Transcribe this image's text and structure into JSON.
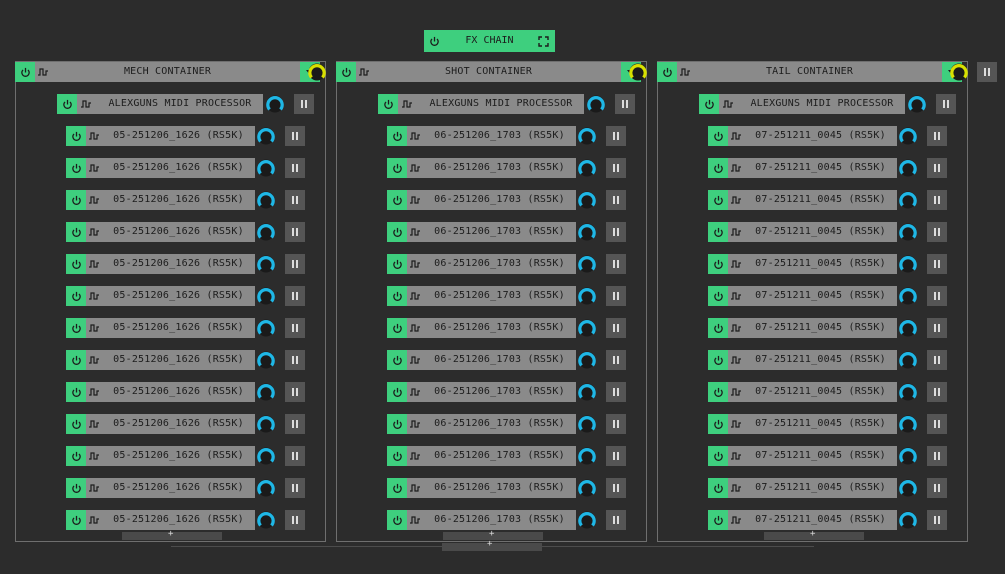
{
  "fx_chain": {
    "label": "FX CHAIN"
  },
  "colors": {
    "power": "#3ecf7e",
    "bar": "#8a8a8a",
    "knob_active": "#1fb7e6",
    "container_knob": "#d8e000",
    "background": "#2c2c2c"
  },
  "containers": [
    {
      "title": "MECH CONTAINER",
      "processor": "ALEXGUNS MIDI PROCESSOR",
      "items": [
        "05-251206_1626 (RS5K)",
        "05-251206_1626 (RS5K)",
        "05-251206_1626 (RS5K)",
        "05-251206_1626 (RS5K)",
        "05-251206_1626 (RS5K)",
        "05-251206_1626 (RS5K)",
        "05-251206_1626 (RS5K)",
        "05-251206_1626 (RS5K)",
        "05-251206_1626 (RS5K)",
        "05-251206_1626 (RS5K)",
        "05-251206_1626 (RS5K)",
        "05-251206_1626 (RS5K)",
        "05-251206_1626 (RS5K)"
      ],
      "add": "+"
    },
    {
      "title": "SHOT CONTAINER",
      "processor": "ALEXGUNS MIDI PROCESSOR",
      "items": [
        "06-251206_1703 (RS5K)",
        "06-251206_1703 (RS5K)",
        "06-251206_1703 (RS5K)",
        "06-251206_1703 (RS5K)",
        "06-251206_1703 (RS5K)",
        "06-251206_1703 (RS5K)",
        "06-251206_1703 (RS5K)",
        "06-251206_1703 (RS5K)",
        "06-251206_1703 (RS5K)",
        "06-251206_1703 (RS5K)",
        "06-251206_1703 (RS5K)",
        "06-251206_1703 (RS5K)",
        "06-251206_1703 (RS5K)"
      ],
      "add": "+"
    },
    {
      "title": "TAIL CONTAINER",
      "processor": "ALEXGUNS MIDI PROCESSOR",
      "items": [
        "07-251211_0045 (RS5K)",
        "07-251211_0045 (RS5K)",
        "07-251211_0045 (RS5K)",
        "07-251211_0045 (RS5K)",
        "07-251211_0045 (RS5K)",
        "07-251211_0045 (RS5K)",
        "07-251211_0045 (RS5K)",
        "07-251211_0045 (RS5K)",
        "07-251211_0045 (RS5K)",
        "07-251211_0045 (RS5K)",
        "07-251211_0045 (RS5K)",
        "07-251211_0045 (RS5K)",
        "07-251211_0045 (RS5K)"
      ],
      "add": "+"
    }
  ],
  "chain_add": "+"
}
